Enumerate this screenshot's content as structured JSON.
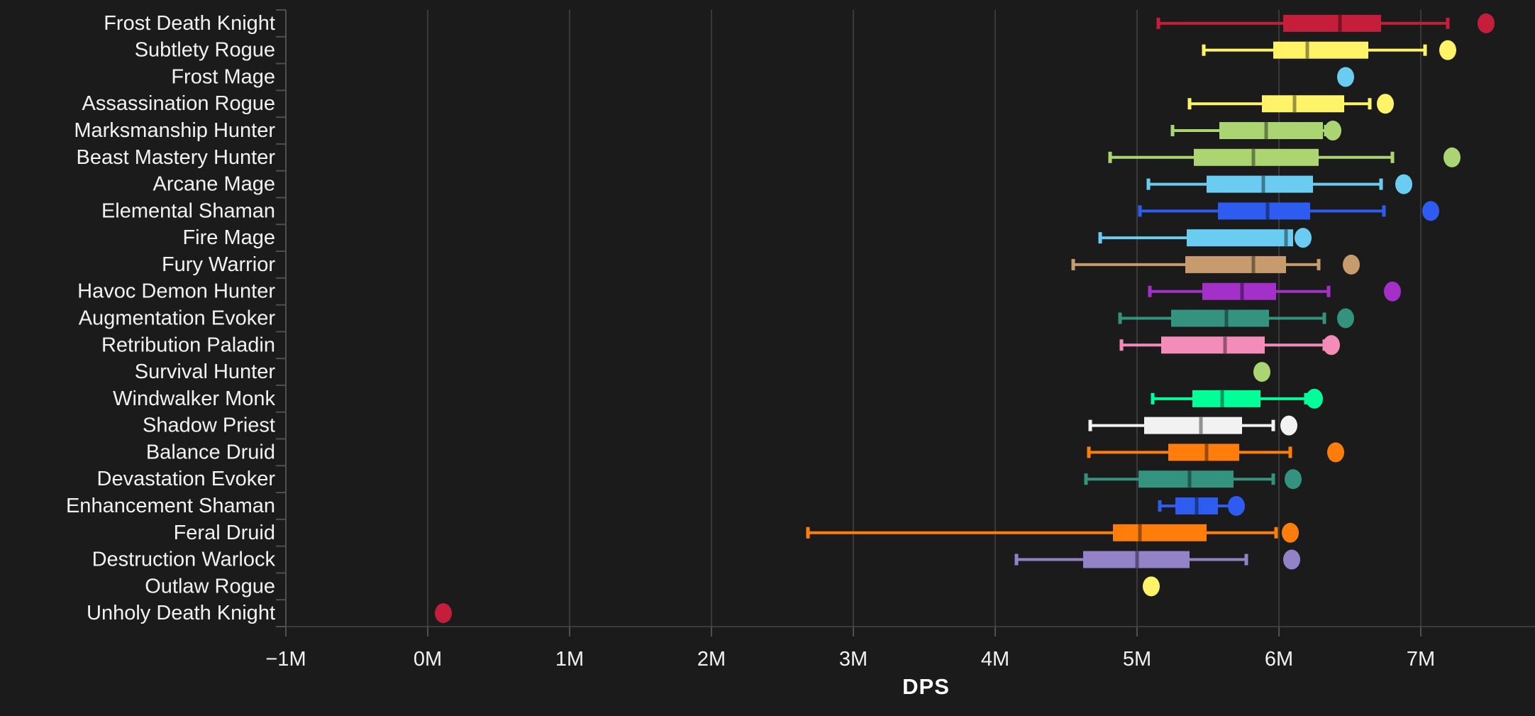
{
  "style": {
    "background": "#1b1b1b",
    "grid_color": "#3a3a3a",
    "axis_color": "#4f4f4f",
    "text_color": "#f2f2f2"
  },
  "chart_data": {
    "type": "boxplot",
    "orientation": "horizontal",
    "title": "",
    "xlabel": "DPS",
    "x_unit": "M (millions of DPS)",
    "x_range": [
      -1,
      7.805
    ],
    "grid": true,
    "x_ticks": [
      {
        "value": -1,
        "label": "−1M"
      },
      {
        "value": 0,
        "label": "0M"
      },
      {
        "value": 1,
        "label": "1M"
      },
      {
        "value": 2,
        "label": "2M"
      },
      {
        "value": 3,
        "label": "3M"
      },
      {
        "value": 4,
        "label": "4M"
      },
      {
        "value": 5,
        "label": "5M"
      },
      {
        "value": 6,
        "label": "6M"
      },
      {
        "value": 7,
        "label": "7M"
      }
    ],
    "series": [
      {
        "label": "Frost Death Knight",
        "color": "#C41E3A",
        "low": 5.15,
        "q1": 6.03,
        "median": 6.43,
        "q3": 6.72,
        "high": 7.19,
        "outliers": [
          7.46
        ]
      },
      {
        "label": "Subtlety Rogue",
        "color": "#FFF468",
        "low": 5.47,
        "q1": 5.96,
        "median": 6.2,
        "q3": 6.63,
        "high": 7.03,
        "outliers": [
          7.19
        ]
      },
      {
        "label": "Frost Mage",
        "color": "#69CCF0",
        "low": null,
        "q1": null,
        "median": null,
        "q3": null,
        "high": null,
        "outliers": [
          6.47
        ]
      },
      {
        "label": "Assassination Rogue",
        "color": "#FFF468",
        "low": 5.37,
        "q1": 5.88,
        "median": 6.11,
        "q3": 6.46,
        "high": 6.64,
        "outliers": [
          6.75
        ]
      },
      {
        "label": "Marksmanship Hunter",
        "color": "#ABD473",
        "low": 5.25,
        "q1": 5.58,
        "median": 5.91,
        "q3": 6.31,
        "high": 6.33,
        "outliers": [
          6.38
        ]
      },
      {
        "label": "Beast Mastery Hunter",
        "color": "#ABD473",
        "low": 4.81,
        "q1": 5.4,
        "median": 5.82,
        "q3": 6.28,
        "high": 6.8,
        "outliers": [
          7.22
        ]
      },
      {
        "label": "Arcane Mage",
        "color": "#69CCF0",
        "low": 5.08,
        "q1": 5.49,
        "median": 5.89,
        "q3": 6.24,
        "high": 6.72,
        "outliers": [
          6.88
        ]
      },
      {
        "label": "Elemental Shaman",
        "color": "#2E5BF0",
        "low": 5.02,
        "q1": 5.57,
        "median": 5.92,
        "q3": 6.22,
        "high": 6.74,
        "outliers": [
          7.07
        ]
      },
      {
        "label": "Fire Mage",
        "color": "#69CCF0",
        "low": 4.74,
        "q1": 5.35,
        "median": 6.05,
        "q3": 6.1,
        "high": null,
        "outliers": [
          6.17
        ]
      },
      {
        "label": "Fury Warrior",
        "color": "#C69B6D",
        "low": 4.55,
        "q1": 5.34,
        "median": 5.82,
        "q3": 6.05,
        "high": 6.28,
        "outliers": [
          6.51
        ]
      },
      {
        "label": "Havoc Demon Hunter",
        "color": "#A330C9",
        "low": 5.09,
        "q1": 5.46,
        "median": 5.74,
        "q3": 5.98,
        "high": 6.35,
        "outliers": [
          6.8
        ]
      },
      {
        "label": "Augmentation Evoker",
        "color": "#33937F",
        "low": 4.88,
        "q1": 5.24,
        "median": 5.63,
        "q3": 5.93,
        "high": 6.32,
        "outliers": [
          6.47
        ]
      },
      {
        "label": "Retribution Paladin",
        "color": "#F48CBA",
        "low": 4.89,
        "q1": 5.17,
        "median": 5.62,
        "q3": 5.9,
        "high": 6.32,
        "outliers": [
          6.37
        ]
      },
      {
        "label": "Survival Hunter",
        "color": "#ABD473",
        "low": null,
        "q1": null,
        "median": null,
        "q3": null,
        "high": null,
        "outliers": [
          5.88
        ]
      },
      {
        "label": "Windwalker Monk",
        "color": "#00FF98",
        "low": 5.11,
        "q1": 5.39,
        "median": 5.6,
        "q3": 5.87,
        "high": 6.19,
        "outliers": [
          6.25
        ]
      },
      {
        "label": "Shadow Priest",
        "color": "#F2F2F2",
        "low": 4.67,
        "q1": 5.05,
        "median": 5.45,
        "q3": 5.74,
        "high": 5.96,
        "outliers": [
          6.07
        ]
      },
      {
        "label": "Balance Druid",
        "color": "#FF7D0A",
        "low": 4.66,
        "q1": 5.22,
        "median": 5.49,
        "q3": 5.72,
        "high": 6.08,
        "outliers": [
          6.4
        ]
      },
      {
        "label": "Devastation Evoker",
        "color": "#33937F",
        "low": 4.64,
        "q1": 5.01,
        "median": 5.37,
        "q3": 5.68,
        "high": 5.96,
        "outliers": [
          6.1
        ]
      },
      {
        "label": "Enhancement Shaman",
        "color": "#2E5BF0",
        "low": 5.16,
        "q1": 5.27,
        "median": 5.42,
        "q3": 5.57,
        "high": 5.66,
        "outliers": [
          5.7
        ]
      },
      {
        "label": "Feral Druid",
        "color": "#FF7D0A",
        "low": 2.68,
        "q1": 4.83,
        "median": 5.02,
        "q3": 5.49,
        "high": 5.98,
        "outliers": [
          6.08
        ]
      },
      {
        "label": "Destruction Warlock",
        "color": "#9482C9",
        "low": 4.15,
        "q1": 4.62,
        "median": 5.0,
        "q3": 5.37,
        "high": 5.77,
        "outliers": [
          6.09
        ]
      },
      {
        "label": "Outlaw Rogue",
        "color": "#FFF468",
        "low": null,
        "q1": null,
        "median": null,
        "q3": null,
        "high": null,
        "outliers": [
          5.1
        ]
      },
      {
        "label": "Unholy Death Knight",
        "color": "#C41E3A",
        "low": null,
        "q1": null,
        "median": null,
        "q3": null,
        "high": null,
        "outliers": [
          0.11
        ]
      }
    ]
  }
}
